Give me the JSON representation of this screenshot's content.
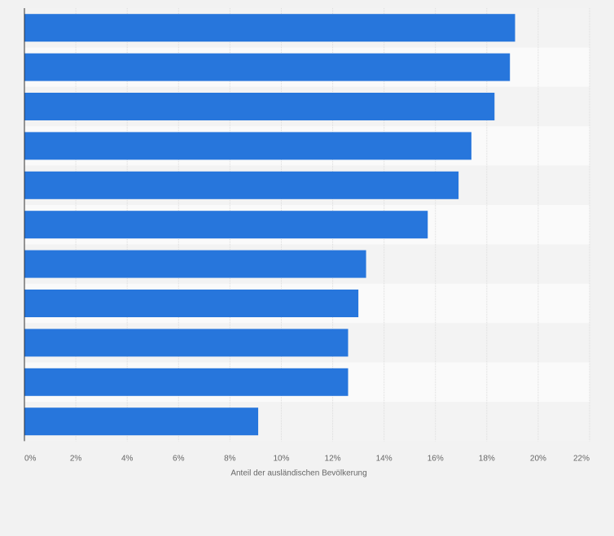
{
  "chart_data": {
    "type": "bar",
    "orientation": "horizontal",
    "categories": [
      "",
      "",
      "",
      "",
      "",
      "",
      "",
      "",
      "",
      "",
      ""
    ],
    "values": [
      19.1,
      18.9,
      18.3,
      17.4,
      16.9,
      15.7,
      13.3,
      13.0,
      12.6,
      12.6,
      9.1
    ],
    "xlabel": "Anteil der ausländischen Bevölkerung",
    "xlim": [
      0,
      22
    ],
    "xticks": [
      0,
      2,
      4,
      6,
      8,
      10,
      12,
      14,
      16,
      18,
      20,
      22
    ],
    "tick_suffix": "%",
    "grid": true,
    "legend": "none",
    "bar_color": "#2776dc",
    "band_colors": [
      "#f3f3f3",
      "#fafafa"
    ],
    "gridline_color": "#dcdcdc",
    "axis_color": "#333333",
    "tick_label_color": "#666666"
  }
}
